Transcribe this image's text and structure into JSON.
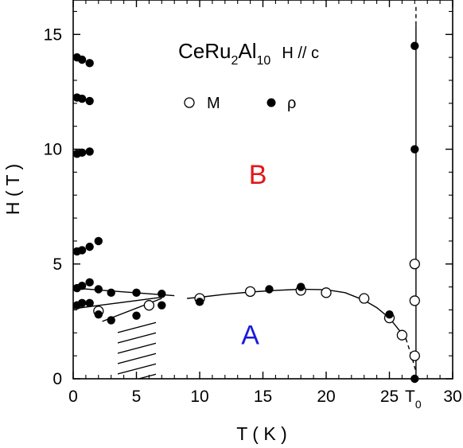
{
  "chart_data": {
    "type": "scatter",
    "xlabel": "T ( K )",
    "ylabel": "H ( T )",
    "xlim": [
      0,
      30
    ],
    "ylim": [
      0,
      16.5
    ],
    "xticks": [
      0,
      5,
      10,
      15,
      20,
      25,
      30
    ],
    "yticks": [
      0,
      5,
      10,
      15
    ],
    "x_tick_extra": {
      "label_main": "T",
      "label_sub": "0",
      "x": 27.1
    },
    "grid": false,
    "title_parts": {
      "compound_main": "CeRu",
      "sub1": "2",
      "compound_mid": "Al",
      "sub2": "10",
      "field": "H // c"
    },
    "legend": {
      "placement": "top-center",
      "entries": [
        {
          "symbol": "open-circle",
          "label": "M"
        },
        {
          "symbol": "filled-circle",
          "label": "ρ"
        }
      ]
    },
    "phase_labels": [
      {
        "text": "A",
        "color": "#1a1adc",
        "x": 14,
        "y": 1.5
      },
      {
        "text": "B",
        "color": "#e01818",
        "x": 14.6,
        "y": 8.5
      }
    ],
    "series": [
      {
        "name": "M",
        "marker": "open-circle",
        "points": [
          [
            2.0,
            2.95
          ],
          [
            6.0,
            3.2
          ],
          [
            10.0,
            3.5
          ],
          [
            14.0,
            3.8
          ],
          [
            18.0,
            3.85
          ],
          [
            20.0,
            3.75
          ],
          [
            23.0,
            3.5
          ],
          [
            25.0,
            2.65
          ],
          [
            26.0,
            1.9
          ],
          [
            27.0,
            1.0
          ],
          [
            27.0,
            3.4
          ],
          [
            27.0,
            5.0
          ]
        ]
      },
      {
        "name": "ρ",
        "marker": "filled-circle",
        "points": [
          [
            0.3,
            14.0
          ],
          [
            0.7,
            13.9
          ],
          [
            1.3,
            13.75
          ],
          [
            0.3,
            12.25
          ],
          [
            0.7,
            12.2
          ],
          [
            1.3,
            12.1
          ],
          [
            0.3,
            9.8
          ],
          [
            0.7,
            9.85
          ],
          [
            1.3,
            9.9
          ],
          [
            0.3,
            5.55
          ],
          [
            0.7,
            5.6
          ],
          [
            1.3,
            5.75
          ],
          [
            2.0,
            6.0
          ],
          [
            0.3,
            3.95
          ],
          [
            0.7,
            4.05
          ],
          [
            1.3,
            4.2
          ],
          [
            2.0,
            3.9
          ],
          [
            0.3,
            3.2
          ],
          [
            0.7,
            3.3
          ],
          [
            1.3,
            3.3
          ],
          [
            2.0,
            2.8
          ],
          [
            3.0,
            3.75
          ],
          [
            3.0,
            2.55
          ],
          [
            5.0,
            3.75
          ],
          [
            5.0,
            2.75
          ],
          [
            7.0,
            3.7
          ],
          [
            7.0,
            3.2
          ],
          [
            10.0,
            3.35
          ],
          [
            15.5,
            3.9
          ],
          [
            18.0,
            4.0
          ],
          [
            25.0,
            2.8
          ],
          [
            27.0,
            14.5
          ],
          [
            27.0,
            10.0
          ],
          [
            27.0,
            0.0
          ]
        ]
      }
    ],
    "lines": [
      {
        "kind": "solid",
        "points": [
          [
            0,
            3.95
          ],
          [
            8,
            3.62
          ]
        ]
      },
      {
        "kind": "solid",
        "points": [
          [
            0,
            3.05
          ],
          [
            7,
            3.55
          ]
        ]
      },
      {
        "kind": "solid",
        "points": [
          [
            2.3,
            2.5
          ],
          [
            7,
            3.5
          ]
        ]
      },
      {
        "kind": "solid",
        "points": [
          [
            9,
            3.5
          ],
          [
            10,
            3.55
          ],
          [
            12,
            3.68
          ],
          [
            14,
            3.78
          ],
          [
            16,
            3.85
          ],
          [
            18,
            3.9
          ],
          [
            20,
            3.88
          ],
          [
            21.5,
            3.75
          ],
          [
            23,
            3.42
          ],
          [
            24,
            3.1
          ],
          [
            25,
            2.65
          ],
          [
            25.8,
            2.1
          ],
          [
            26.3,
            1.75
          ]
        ]
      },
      {
        "kind": "dashed",
        "points": [
          [
            26.3,
            1.75
          ],
          [
            26.8,
            0.9
          ],
          [
            27.05,
            0.4
          ]
        ]
      },
      {
        "kind": "solid",
        "points": [
          [
            27.1,
            0
          ],
          [
            27.1,
            15.4
          ]
        ]
      },
      {
        "kind": "dashed",
        "points": [
          [
            27.1,
            15.4
          ],
          [
            27.1,
            16.2
          ]
        ]
      }
    ]
  }
}
